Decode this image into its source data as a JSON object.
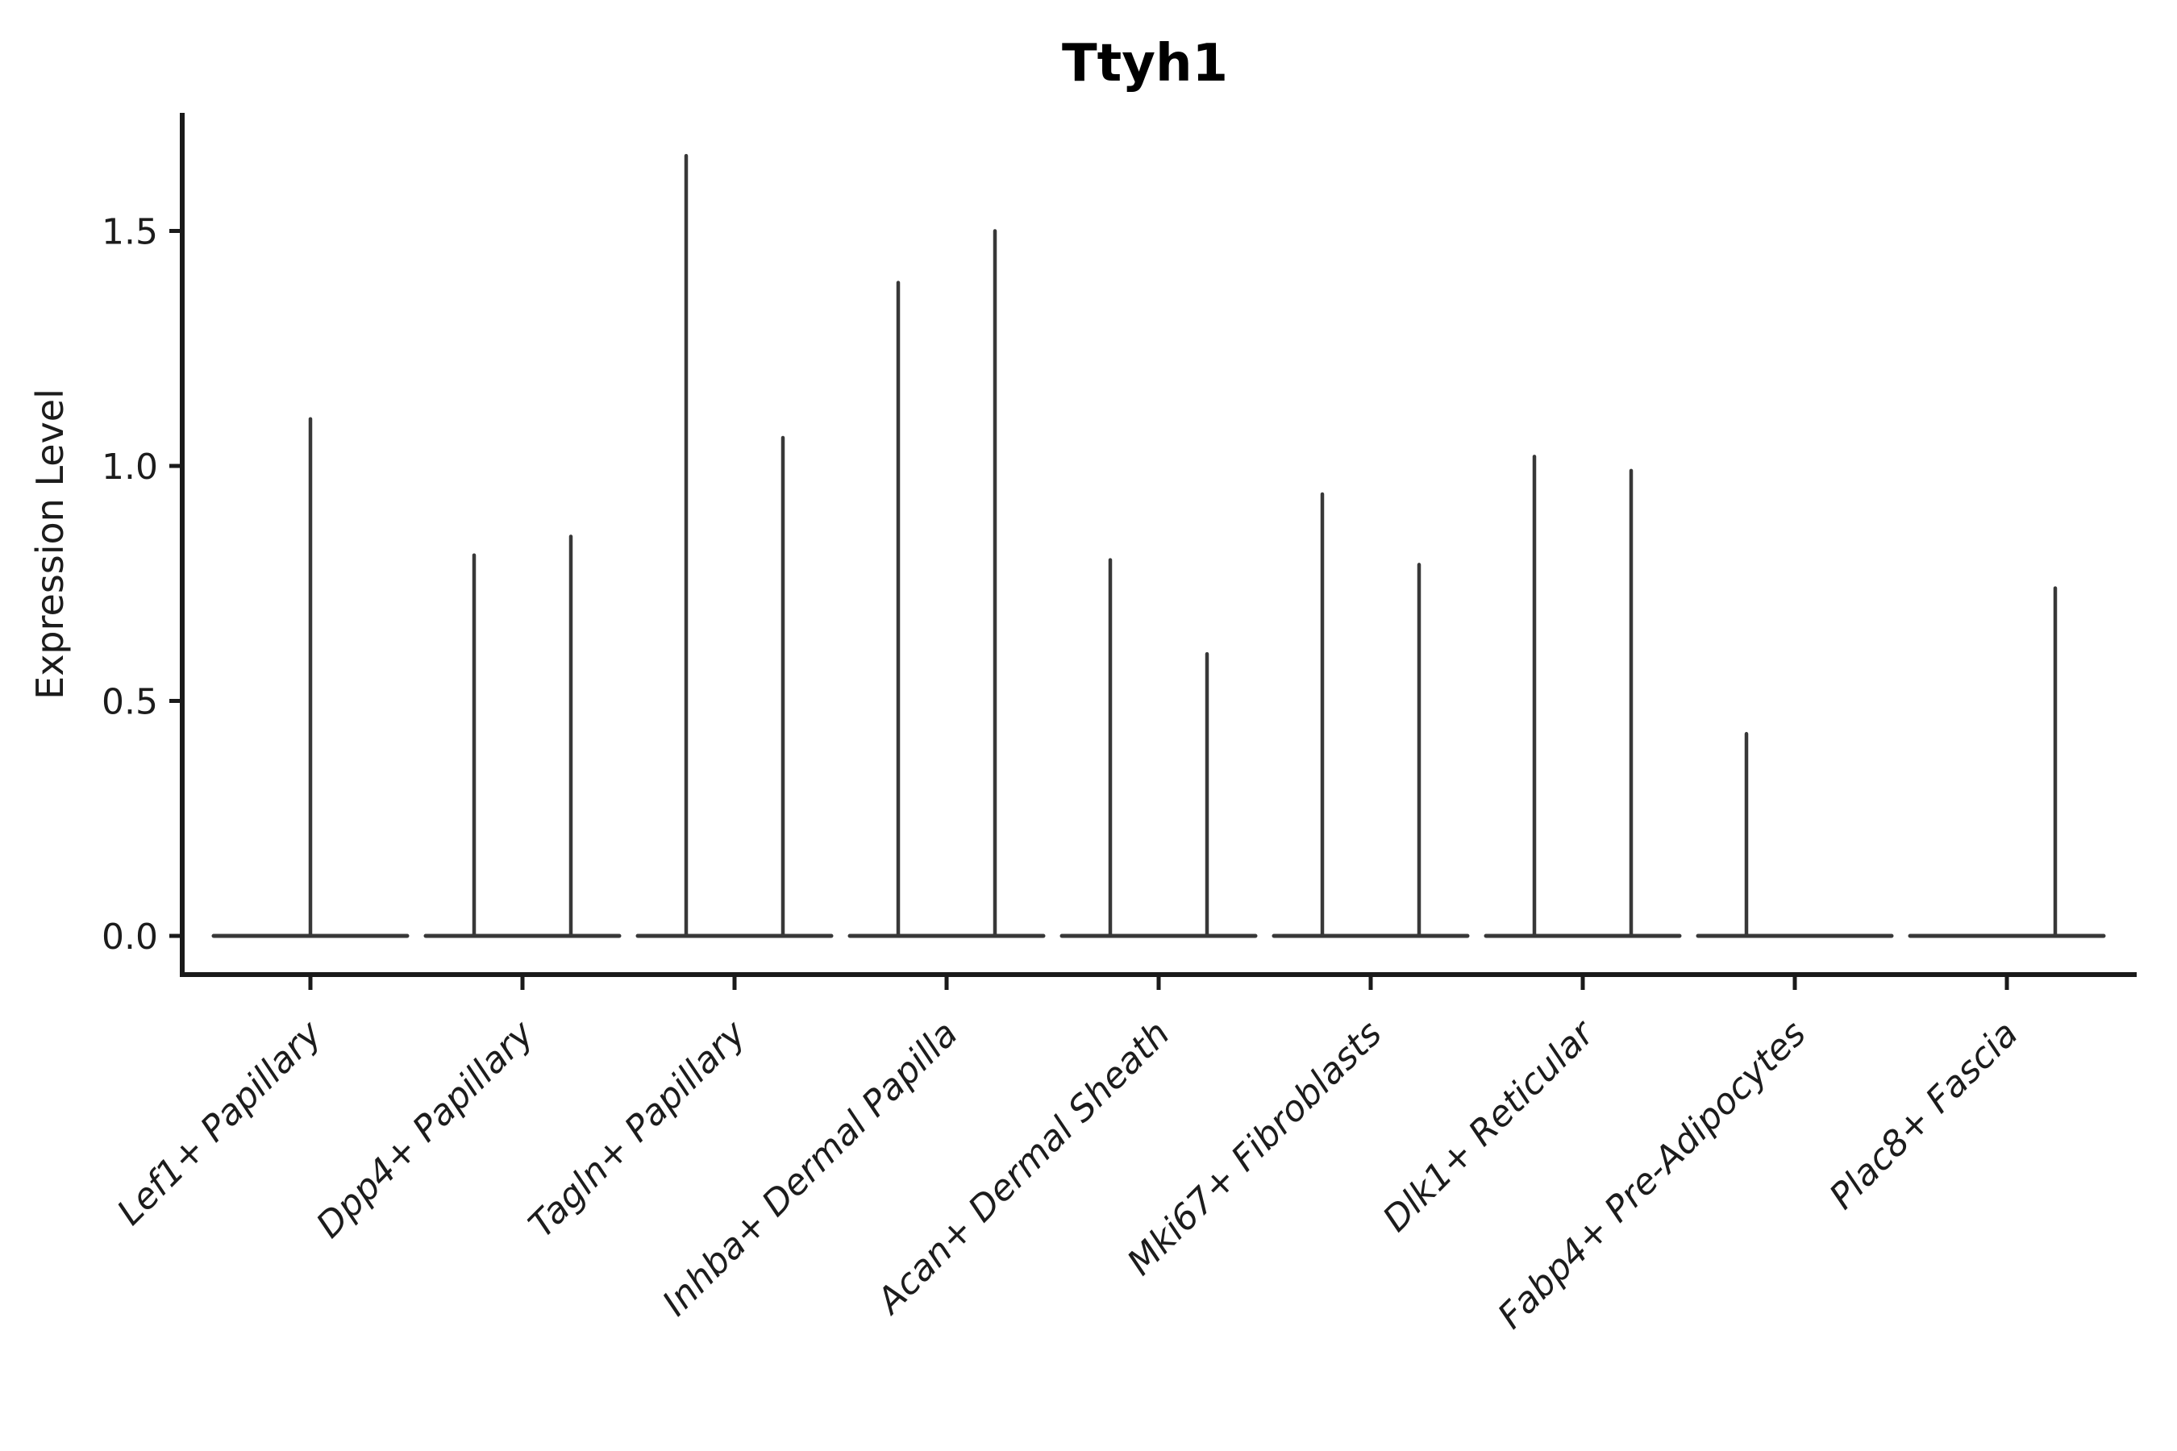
{
  "figure": {
    "background": "#ffffff"
  },
  "chart_data": {
    "type": "violin",
    "title": "Ttyh1",
    "xlabel": "",
    "ylabel": "Expression Level",
    "ylim": [
      -0.08,
      1.75
    ],
    "yticks": [
      0.0,
      0.5,
      1.0,
      1.5
    ],
    "ytick_labels": [
      "0.0",
      "0.5",
      "1.0",
      "1.5"
    ],
    "grid": false,
    "legend": false,
    "categories": [
      "Lef1+ Papillary",
      "Dpp4+ Papillary",
      "Tagln+ Papillary",
      "Inhba+ Dermal Papilla",
      "Acan+ Dermal Sheath",
      "Mki67+ Fibroblasts",
      "Dlk1+ Reticular",
      "Fabp4+ Pre-Adipocytes",
      "Plac8+ Fascia"
    ],
    "violins": [
      {
        "category": "Lef1+ Papillary",
        "baseline_value": 0.0,
        "spikes": [
          {
            "position": "center",
            "max": 1.1
          }
        ]
      },
      {
        "category": "Dpp4+ Papillary",
        "baseline_value": 0.0,
        "spikes": [
          {
            "position": "left",
            "max": 0.81
          },
          {
            "position": "right",
            "max": 0.85
          }
        ]
      },
      {
        "category": "Tagln+ Papillary",
        "baseline_value": 0.0,
        "spikes": [
          {
            "position": "left",
            "max": 1.66
          },
          {
            "position": "right",
            "max": 1.06
          }
        ]
      },
      {
        "category": "Inhba+ Dermal Papilla",
        "baseline_value": 0.0,
        "spikes": [
          {
            "position": "left",
            "max": 1.39
          },
          {
            "position": "right",
            "max": 1.5
          }
        ]
      },
      {
        "category": "Acan+ Dermal Sheath",
        "baseline_value": 0.0,
        "spikes": [
          {
            "position": "left",
            "max": 0.8
          },
          {
            "position": "right",
            "max": 0.6
          }
        ]
      },
      {
        "category": "Mki67+ Fibroblasts",
        "baseline_value": 0.0,
        "spikes": [
          {
            "position": "left",
            "max": 0.94
          },
          {
            "position": "right",
            "max": 0.79
          }
        ]
      },
      {
        "category": "Dlk1+ Reticular",
        "baseline_value": 0.0,
        "spikes": [
          {
            "position": "left",
            "max": 1.02
          },
          {
            "position": "right",
            "max": 0.99
          }
        ]
      },
      {
        "category": "Fabp4+ Pre-Adipocytes",
        "baseline_value": 0.0,
        "spikes": [
          {
            "position": "left",
            "max": 0.43
          }
        ]
      },
      {
        "category": "Plac8+ Fascia",
        "baseline_value": 0.0,
        "spikes": [
          {
            "position": "right",
            "max": 0.74
          }
        ]
      }
    ],
    "colors": {
      "violin_stroke": "#383838",
      "axis_stroke": "#1a1a1a",
      "text": "#1c1c1c",
      "title": "#000000",
      "background": "#ffffff"
    }
  }
}
